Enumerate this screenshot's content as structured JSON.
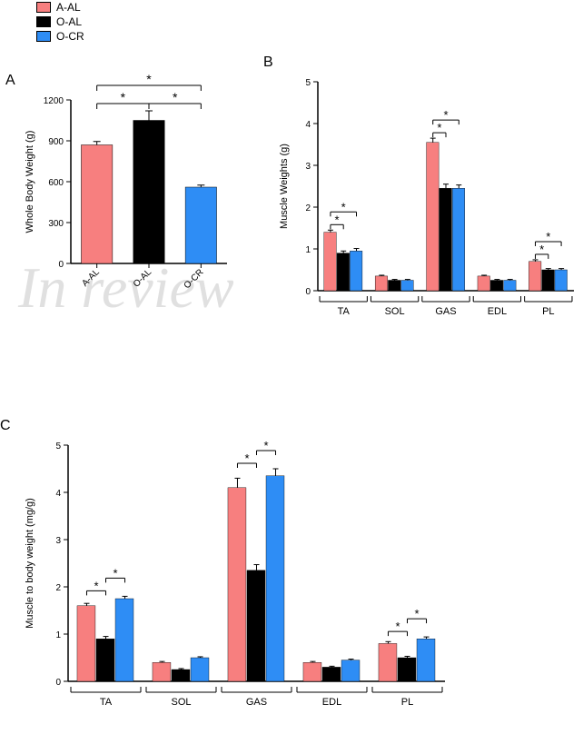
{
  "legend": {
    "items": [
      {
        "label": "A-AL",
        "color": "#f77f7f"
      },
      {
        "label": "O-AL",
        "color": "#000000"
      },
      {
        "label": "O-CR",
        "color": "#2e8df5"
      }
    ]
  },
  "watermark": "In review",
  "panels": {
    "A": {
      "label": "A"
    },
    "B": {
      "label": "B"
    },
    "C": {
      "label": "C"
    }
  },
  "colors": {
    "axis": "#000000",
    "text": "#000000",
    "errorbar": "#000000",
    "sig": "#000000",
    "background": "#ffffff"
  },
  "chartA": {
    "type": "bar",
    "ylabel": "Whole Body Weight (g)",
    "ylim": [
      0,
      1200
    ],
    "ytick_step": 300,
    "categories": [
      "A-AL",
      "O-AL",
      "O-CR"
    ],
    "series": [
      {
        "name": "A-AL",
        "value": 870,
        "err": 25,
        "color": "#f77f7f"
      },
      {
        "name": "O-AL",
        "value": 1050,
        "err": 70,
        "color": "#000000"
      },
      {
        "name": "O-CR",
        "value": 560,
        "err": 15,
        "color": "#2e8df5"
      }
    ],
    "bar_width": 0.6,
    "label_fontsize": 11,
    "tick_fontsize": 10,
    "sig_marks": [
      {
        "i": 0,
        "j": 1,
        "level": 0
      },
      {
        "i": 1,
        "j": 2,
        "level": 0
      },
      {
        "i": 0,
        "j": 2,
        "level": 1
      }
    ]
  },
  "chartB": {
    "type": "grouped-bar",
    "ylabel": "Muscle Weights (g)",
    "ylim": [
      0,
      5
    ],
    "ytick_step": 1,
    "groups": [
      "TA",
      "SOL",
      "GAS",
      "EDL",
      "PL"
    ],
    "series_colors": [
      "#f77f7f",
      "#000000",
      "#2e8df5"
    ],
    "data": {
      "TA": {
        "values": [
          1.4,
          0.9,
          0.95
        ],
        "err": [
          0.05,
          0.05,
          0.06
        ]
      },
      "SOL": {
        "values": [
          0.35,
          0.25,
          0.25
        ],
        "err": [
          0.02,
          0.02,
          0.02
        ]
      },
      "GAS": {
        "values": [
          3.55,
          2.45,
          2.45
        ],
        "err": [
          0.1,
          0.1,
          0.08
        ]
      },
      "EDL": {
        "values": [
          0.35,
          0.25,
          0.25
        ],
        "err": [
          0.02,
          0.02,
          0.02
        ]
      },
      "PL": {
        "values": [
          0.7,
          0.5,
          0.5
        ],
        "err": [
          0.04,
          0.03,
          0.03
        ]
      }
    },
    "label_fontsize": 11,
    "tick_fontsize": 10,
    "sig_marks": {
      "TA": [
        {
          "i": 0,
          "j": 1,
          "level": 0
        },
        {
          "i": 0,
          "j": 2,
          "level": 1
        }
      ],
      "GAS": [
        {
          "i": 0,
          "j": 1,
          "level": 0
        },
        {
          "i": 0,
          "j": 2,
          "level": 1
        }
      ],
      "PL": [
        {
          "i": 0,
          "j": 1,
          "level": 0
        },
        {
          "i": 0,
          "j": 2,
          "level": 1
        }
      ]
    }
  },
  "chartC": {
    "type": "grouped-bar",
    "ylabel": "Muscle to body weight (mg/g)",
    "ylim": [
      0,
      5
    ],
    "ytick_step": 1,
    "groups": [
      "TA",
      "SOL",
      "GAS",
      "EDL",
      "PL"
    ],
    "series_colors": [
      "#f77f7f",
      "#000000",
      "#2e8df5"
    ],
    "data": {
      "TA": {
        "values": [
          1.6,
          0.9,
          1.75
        ],
        "err": [
          0.05,
          0.05,
          0.05
        ]
      },
      "SOL": {
        "values": [
          0.4,
          0.25,
          0.5
        ],
        "err": [
          0.02,
          0.02,
          0.02
        ]
      },
      "GAS": {
        "values": [
          4.1,
          2.35,
          4.35
        ],
        "err": [
          0.2,
          0.12,
          0.15
        ]
      },
      "EDL": {
        "values": [
          0.4,
          0.3,
          0.45
        ],
        "err": [
          0.02,
          0.02,
          0.02
        ]
      },
      "PL": {
        "values": [
          0.8,
          0.5,
          0.9
        ],
        "err": [
          0.04,
          0.03,
          0.04
        ]
      }
    },
    "label_fontsize": 11,
    "tick_fontsize": 10,
    "sig_marks": {
      "TA": [
        {
          "i": 0,
          "j": 1,
          "level": 0
        },
        {
          "i": 1,
          "j": 2,
          "level": 1
        }
      ],
      "GAS": [
        {
          "i": 0,
          "j": 1,
          "level": 0
        },
        {
          "i": 1,
          "j": 2,
          "level": 1
        }
      ],
      "PL": [
        {
          "i": 0,
          "j": 1,
          "level": 0
        },
        {
          "i": 1,
          "j": 2,
          "level": 1
        }
      ]
    }
  }
}
